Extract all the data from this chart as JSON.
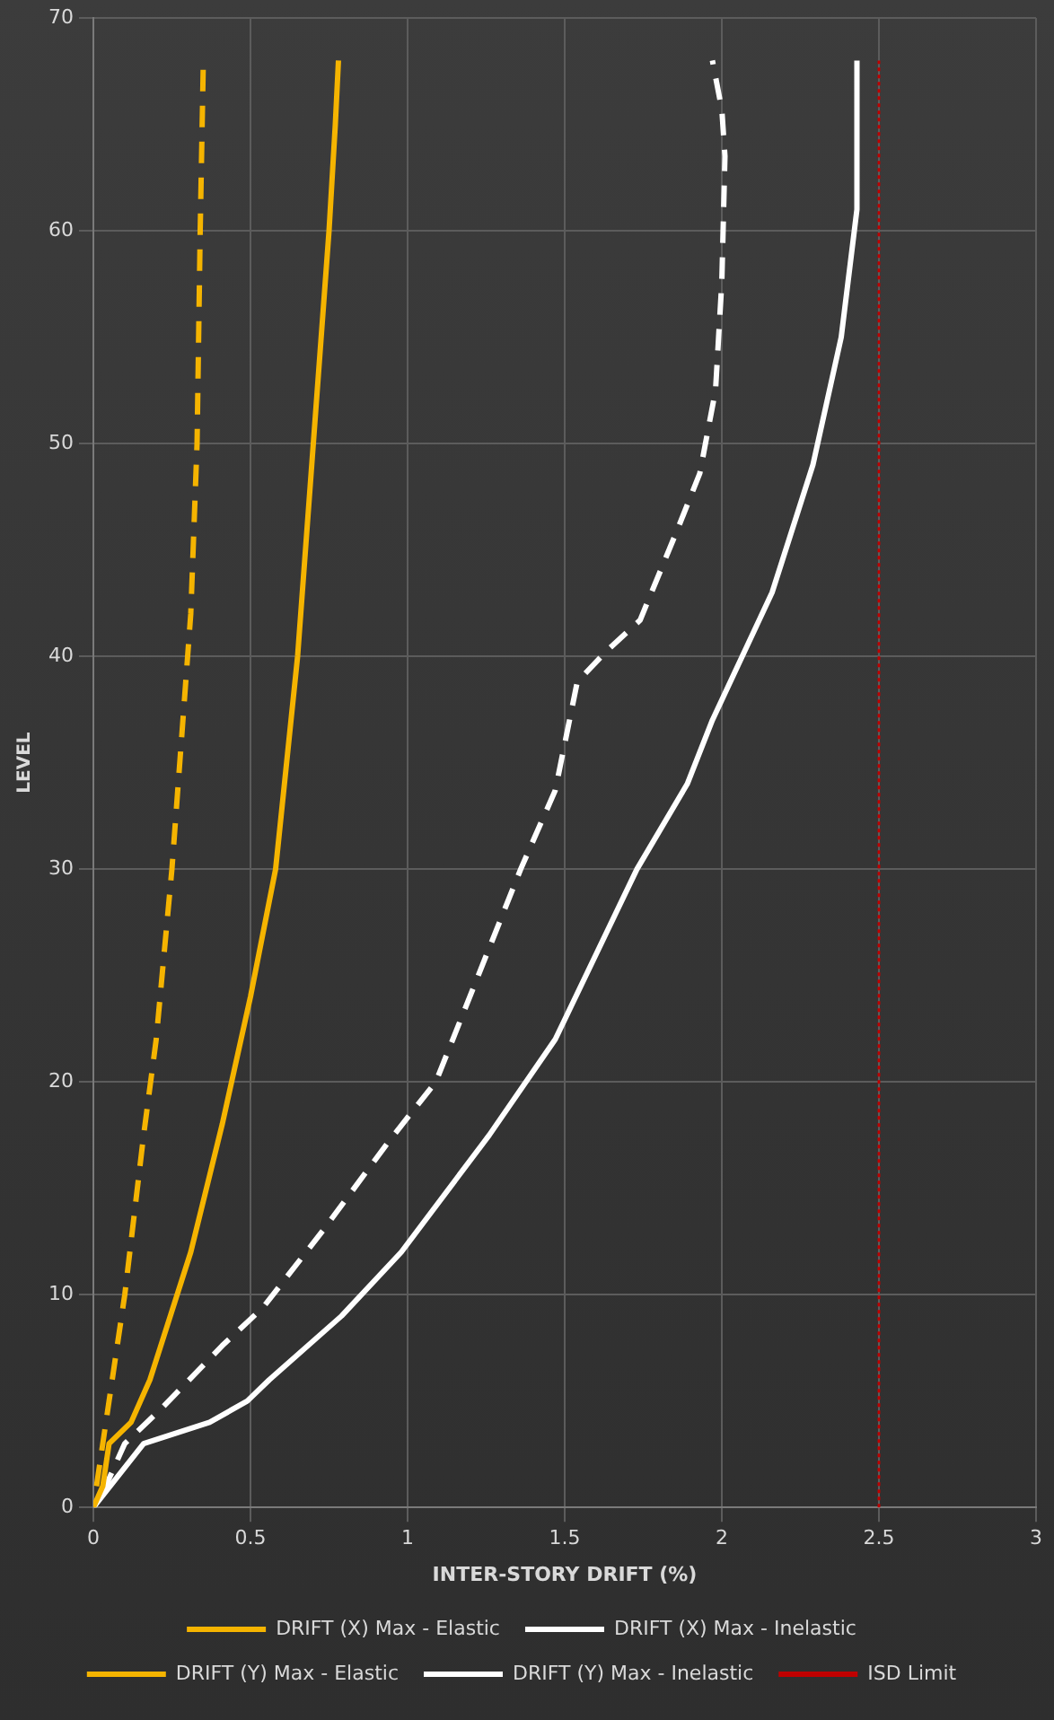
{
  "chart_data": {
    "type": "line",
    "xlabel": "INTER-STORY DRIFT (%)",
    "ylabel": "LEVEL",
    "xlim": [
      0,
      3
    ],
    "xticks": [
      0,
      0.5,
      1,
      1.5,
      2,
      2.5,
      3
    ],
    "ylim": [
      0,
      70
    ],
    "yticks": [
      0,
      10,
      20,
      30,
      40,
      50,
      60,
      70
    ],
    "grid": true,
    "legend": "bottom",
    "marker": "none",
    "series": [
      {
        "name": "DRIFT (X) Max - Elastic",
        "color": "#f5b400",
        "line_style": "solid",
        "x": [
          0,
          0.03,
          0.05,
          0.12,
          0.18,
          0.31,
          0.41,
          0.5,
          0.58,
          0.65,
          0.7,
          0.75,
          0.77,
          0.78
        ],
        "values": [
          0,
          1,
          3,
          4,
          6,
          12,
          18,
          24,
          30,
          40,
          50,
          60,
          65,
          68
        ]
      },
      {
        "name": "DRIFT (X) Max - Inelastic",
        "color": "#ffffff",
        "line_style": "solid",
        "x": [
          0,
          0.16,
          0.37,
          0.49,
          0.56,
          0.79,
          0.98,
          1.26,
          1.47,
          1.73,
          1.89,
          1.97,
          2.16,
          2.29,
          2.38,
          2.43,
          2.43
        ],
        "values": [
          0,
          3,
          4,
          5,
          6,
          9,
          12,
          17.5,
          22,
          30,
          34,
          37,
          43,
          49,
          55,
          61,
          68
        ]
      },
      {
        "name": "DRIFT (Y) Max - Elastic",
        "color": "#f5b400",
        "line_style": "dashed",
        "x": [
          0.01,
          0.03,
          0.05,
          0.1,
          0.16,
          0.2,
          0.25,
          0.29,
          0.31,
          0.33,
          0.34,
          0.35
        ],
        "values": [
          1,
          3,
          5,
          10,
          17.5,
          22,
          30,
          38,
          42,
          50,
          60,
          68
        ]
      },
      {
        "name": "DRIFT (Y) Max - Inelastic",
        "color": "#ffffff",
        "line_style": "dashed",
        "x": [
          0.03,
          0.1,
          0.22,
          0.41,
          0.54,
          0.73,
          0.94,
          1.09,
          1.36,
          1.47,
          1.54,
          1.63,
          1.74,
          1.86,
          1.93,
          1.98,
          2,
          2.01,
          2,
          1.97
        ],
        "values": [
          0.7,
          3,
          4.7,
          7.6,
          9.4,
          13,
          17.2,
          20,
          30,
          33.7,
          38.8,
          40.2,
          41.7,
          46,
          48.6,
          52.5,
          57.6,
          63.5,
          65.7,
          68
        ]
      },
      {
        "name": "ISD Limit",
        "color": "#c00000",
        "line_style": "dotted",
        "x": [
          2.5,
          2.5
        ],
        "values": [
          0,
          68
        ]
      }
    ]
  }
}
